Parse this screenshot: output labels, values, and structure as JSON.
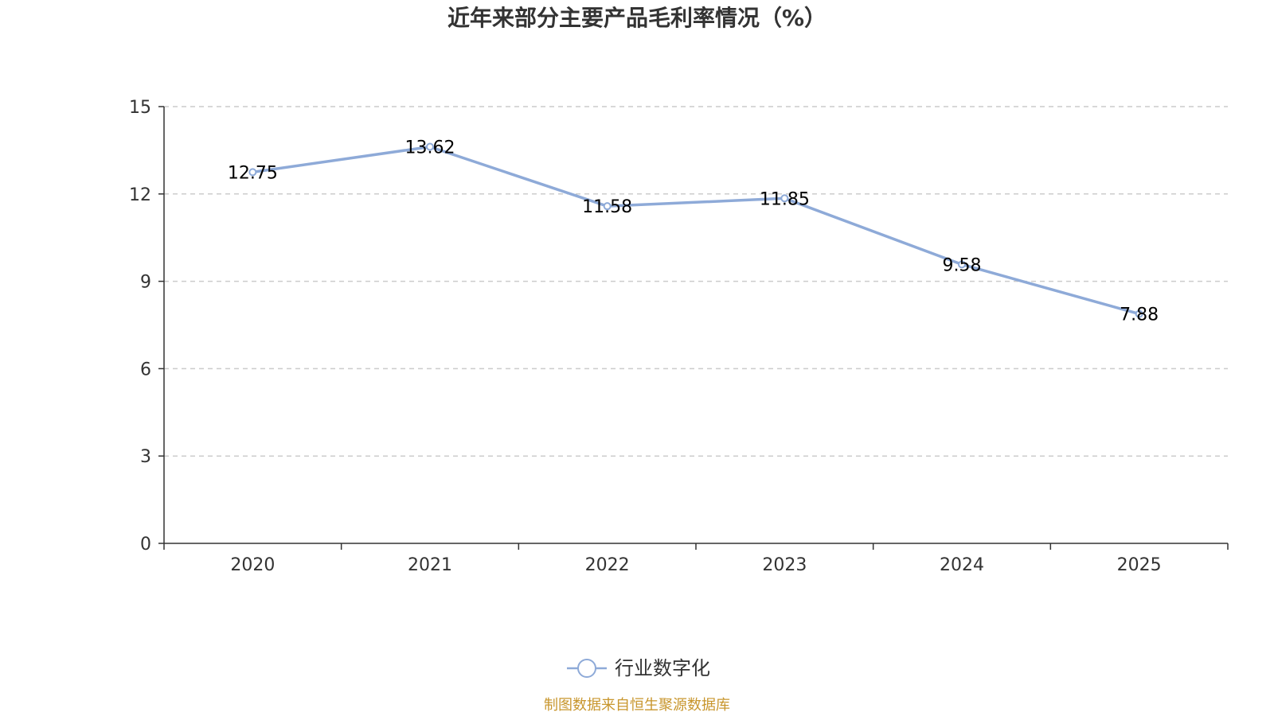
{
  "colors": {
    "series_line": "#8eaad8",
    "axis": "#333333",
    "grid": "#cccccc",
    "source_text": "#c8962d",
    "title": "#333333"
  },
  "chart_data": {
    "type": "line",
    "title": "近年来部分主要产品毛利率情况（%）",
    "xlabel": "",
    "ylabel": "",
    "categories": [
      "2020",
      "2021",
      "2022",
      "2023",
      "2024",
      "2025"
    ],
    "series": [
      {
        "name": "行业数字化",
        "values": [
          12.75,
          13.62,
          11.58,
          11.85,
          9.58,
          7.88
        ],
        "value_labels": [
          "12.75",
          "13.62",
          "11.58",
          "11.85",
          "9.58",
          "7.88"
        ]
      }
    ],
    "ylim": [
      0,
      15
    ],
    "yticks": [
      0,
      3,
      6,
      9,
      12,
      15
    ],
    "grid": true,
    "legend_position": "bottom-center"
  },
  "source": "制图数据来自恒生聚源数据库"
}
